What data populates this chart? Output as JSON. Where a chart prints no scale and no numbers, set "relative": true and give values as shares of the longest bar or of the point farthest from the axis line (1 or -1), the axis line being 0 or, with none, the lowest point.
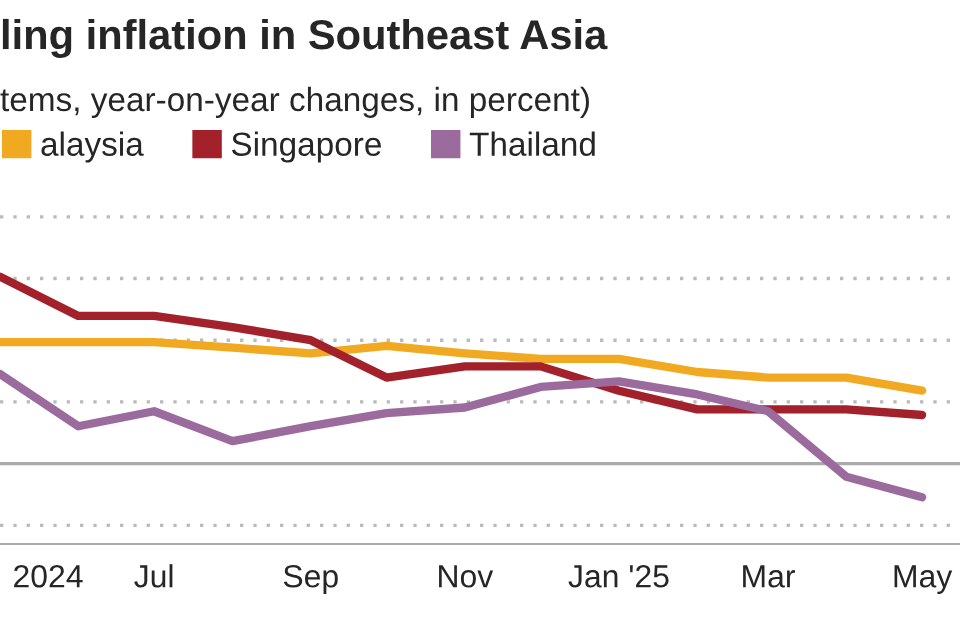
{
  "chart_data": {
    "type": "line",
    "title": "ling inflation in Southeast Asia",
    "subtitle": "tems, year-on-year changes, in percent)",
    "x": [
      "2024-05",
      "2024-06",
      "2024-07",
      "2024-08",
      "2024-09",
      "2024-10",
      "2024-11",
      "2024-12",
      "2025-01",
      "2025-02",
      "2025-03",
      "2025-04",
      "2025-05"
    ],
    "relative": true,
    "series": [
      {
        "name": "alaysia",
        "color": "#f2a922",
        "values": [
          0.65,
          0.65,
          0.65,
          0.62,
          0.59,
          0.63,
          0.59,
          0.56,
          0.56,
          0.49,
          0.46,
          0.46,
          0.39
        ]
      },
      {
        "name": "Singapore",
        "color": "#a3212a",
        "values": [
          1,
          0.79,
          0.79,
          0.73,
          0.66,
          0.46,
          0.52,
          0.52,
          0.39,
          0.29,
          0.29,
          0.29,
          0.26
        ]
      },
      {
        "name": "Thailand",
        "color": "#9c6b9e",
        "values": [
          0.48,
          0.2,
          0.28,
          0.12,
          0.2,
          0.27,
          0.3,
          0.41,
          0.44,
          0.37,
          0.28,
          -0.07,
          -0.18
        ]
      }
    ],
    "xlim": [
      "2024-05-01",
      "2025-05-16"
    ],
    "xticks": [
      {
        "value": "2024-05-20",
        "label": "2024"
      },
      {
        "value": "2024-07",
        "label": "Jul"
      },
      {
        "value": "2024-09",
        "label": "Sep"
      },
      {
        "value": "2024-11",
        "label": "Nov"
      },
      {
        "value": "2025-01",
        "label": "Jan '25"
      },
      {
        "value": "2025-03",
        "label": "Mar"
      },
      {
        "value": "2025-05",
        "label": "May"
      }
    ],
    "ref_lines": [
      {
        "axis": "y",
        "value": 0,
        "color": "#aaaaaa",
        "line_style": "solid"
      },
      {
        "axis": "y",
        "value": -0.33,
        "color": "#bbbbbb",
        "line_style": "dotted"
      },
      {
        "axis": "y",
        "value": 0.33,
        "color": "#bbbbbb",
        "line_style": "dotted"
      },
      {
        "axis": "y",
        "value": 0.66,
        "color": "#bbbbbb",
        "line_style": "dotted"
      },
      {
        "axis": "y",
        "value": 0.99,
        "color": "#bbbbbb",
        "line_style": "dotted"
      },
      {
        "axis": "y",
        "value": 1.32,
        "color": "#bbbbbb",
        "line_style": "dotted"
      }
    ],
    "legend": "top left",
    "line_style": "solid",
    "marker": "none"
  }
}
